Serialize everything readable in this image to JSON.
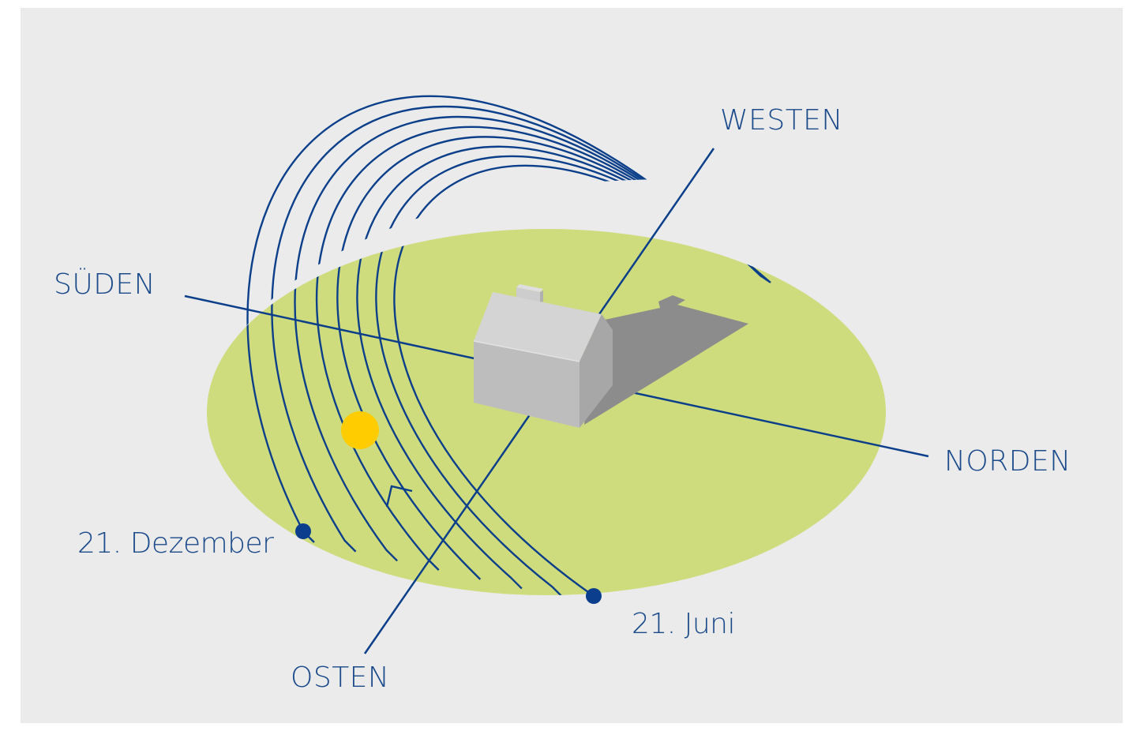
{
  "colors": {
    "background": "#ebebeb",
    "ground": "#cfdc7e",
    "path_lines": "#0c3f8a",
    "axis_lines": "#0c3f8a",
    "label_text": "#1a4a8a",
    "sun": "#ffcc00",
    "date_marker": "#0b3e8c",
    "house_front": "#b8b8b8",
    "house_side": "#a4a4a4",
    "house_roof": "#cfcfcf",
    "shadow": "#8c8c8c"
  },
  "labels": {
    "west": "WESTEN",
    "south": "SÜDEN",
    "north": "NORDEN",
    "east": "OSTEN",
    "december": "21. Dezember",
    "june": "21. Juni"
  },
  "sun_paths": {
    "count": 8
  },
  "icons": {
    "sun": "sun-icon",
    "direction_arrow": "arrow-icon"
  }
}
